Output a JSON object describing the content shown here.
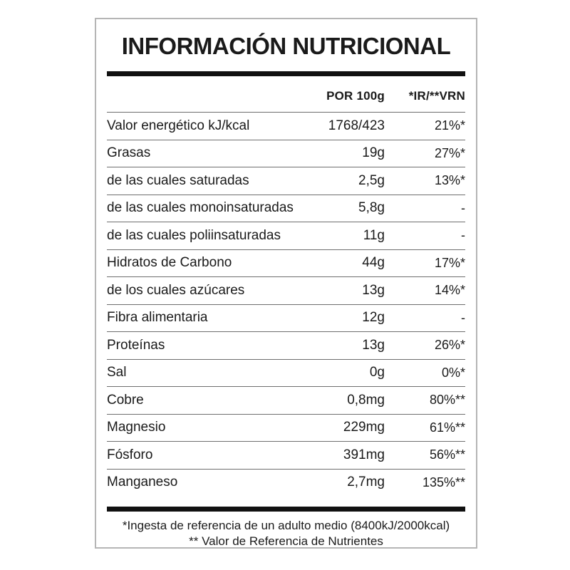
{
  "title": "INFORMACIÓN NUTRICIONAL",
  "table": {
    "col2_header": "POR 100g",
    "col3_header": "*IR/**VRN",
    "rows": [
      {
        "label": "Valor energético kJ/kcal",
        "per100g": "1768/423",
        "ir_vrn": "21%*"
      },
      {
        "label": "Grasas",
        "per100g": "19g",
        "ir_vrn": "27%*"
      },
      {
        "label": "de las cuales saturadas",
        "per100g": "2,5g",
        "ir_vrn": "13%*"
      },
      {
        "label": "de las cuales monoinsaturadas",
        "per100g": "5,8g",
        "ir_vrn": "-"
      },
      {
        "label": "de las cuales poliinsaturadas",
        "per100g": "11g",
        "ir_vrn": "-"
      },
      {
        "label": "Hidratos de Carbono",
        "per100g": "44g",
        "ir_vrn": "17%*"
      },
      {
        "label": "de los cuales azúcares",
        "per100g": "13g",
        "ir_vrn": "14%*"
      },
      {
        "label": "Fibra alimentaria",
        "per100g": "12g",
        "ir_vrn": "-"
      },
      {
        "label": "Proteínas",
        "per100g": "13g",
        "ir_vrn": "26%*"
      },
      {
        "label": "Sal",
        "per100g": "0g",
        "ir_vrn": "0%*"
      },
      {
        "label": "Cobre",
        "per100g": "0,8mg",
        "ir_vrn": "80%**"
      },
      {
        "label": "Magnesio",
        "per100g": "229mg",
        "ir_vrn": "61%**"
      },
      {
        "label": "Fósforo",
        "per100g": "391mg",
        "ir_vrn": "56%**"
      },
      {
        "label": "Manganeso",
        "per100g": "2,7mg",
        "ir_vrn": "135%**"
      }
    ]
  },
  "footnotes": [
    "*Ingesta de referencia de un adulto medio (8400kJ/2000kcal)",
    "** Valor de Referencia de Nutrientes"
  ],
  "colors": {
    "text": "#1a1a1a",
    "thick_rule": "#111111",
    "row_divider": "#6e6e6e",
    "card_border": "#b5b5b5",
    "background": "#ffffff"
  }
}
